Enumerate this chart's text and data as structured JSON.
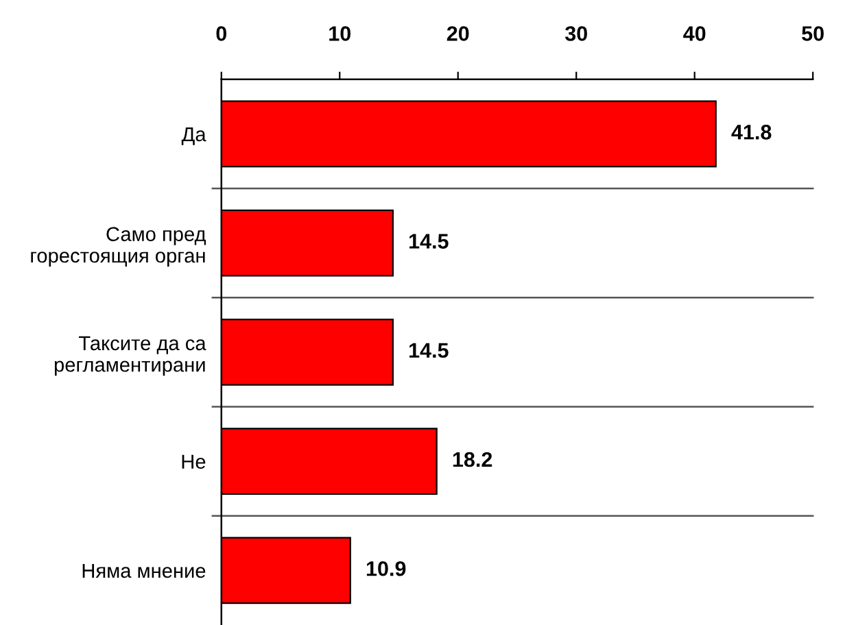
{
  "chart_data": {
    "type": "bar",
    "orientation": "horizontal",
    "categories": [
      "Да",
      "Само пред\nгорестоящия орган",
      "Таксите да са\nрегламентирани",
      "Не",
      "Няма мнение"
    ],
    "values": [
      41.8,
      14.5,
      14.5,
      18.2,
      10.9
    ],
    "color": "#ff0000",
    "xlim": [
      0,
      50
    ],
    "xticks": [
      0,
      10,
      20,
      30,
      40,
      50
    ],
    "grid": "y",
    "data_labels": true
  }
}
